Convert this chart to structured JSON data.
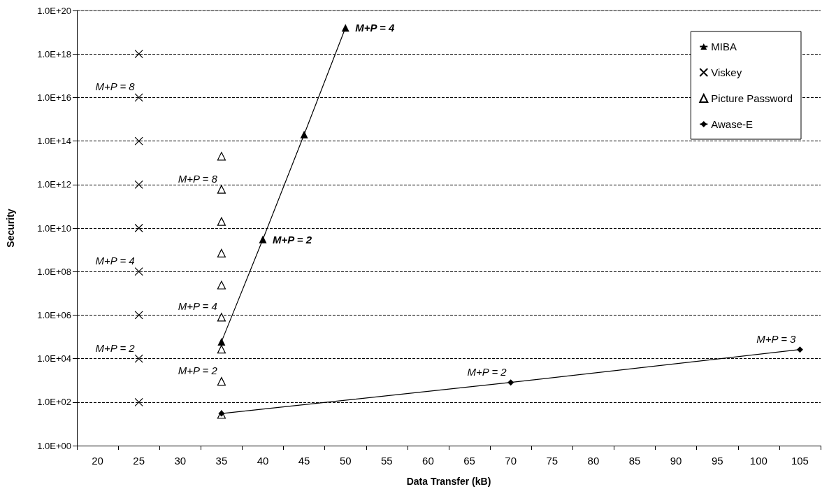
{
  "chart_data": {
    "type": "line",
    "xlabel": "Data Transfer (kB)",
    "ylabel": "Security",
    "categories": [
      "20",
      "25",
      "30",
      "35",
      "40",
      "45",
      "50",
      "55",
      "60",
      "65",
      "70",
      "75",
      "80",
      "85",
      "90",
      "95",
      "100",
      "105"
    ],
    "series": [
      {
        "name": "MIBA",
        "color": "#000000",
        "marker": "triangle",
        "x": [
          "35",
          "40",
          "45",
          "50"
        ],
        "values": [
          60000,
          3000000000,
          200000000000000,
          1.6e+19
        ]
      },
      {
        "name": "Viskey",
        "type": "scatter",
        "color": "#000000",
        "marker": "cross",
        "x": [
          "25",
          "25",
          "25",
          "25",
          "25",
          "25",
          "25",
          "25",
          "25"
        ],
        "values": [
          100,
          10000,
          1000000,
          100000000,
          10000000000,
          1000000000000,
          100000000000000,
          1e+16,
          1e+18
        ]
      },
      {
        "name": "Picture Password",
        "type": "scatter",
        "color": "#000000",
        "marker": "triangle",
        "x": [
          "35",
          "35",
          "35",
          "35",
          "35",
          "35",
          "35",
          "35",
          "35"
        ],
        "values": [
          27,
          900,
          27000,
          800000,
          24000000,
          700000000,
          20000000000,
          600000000000,
          20000000000000
        ]
      },
      {
        "name": "Awase-E",
        "color": "#000000",
        "marker": "diamond",
        "x": [
          "35",
          "70",
          "105"
        ],
        "values": [
          30,
          800,
          26000
        ]
      }
    ],
    "log": "y",
    "ylim": [
      1,
      1e+20
    ],
    "yticks": [
      {
        "value": 1,
        "label": "1.0E+00"
      },
      {
        "value": 100,
        "label": "1.0E+02"
      },
      {
        "value": 10000,
        "label": "1.0E+04"
      },
      {
        "value": 1000000,
        "label": "1.0E+06"
      },
      {
        "value": 100000000,
        "label": "1.0E+08"
      },
      {
        "value": 10000000000,
        "label": "1.0E+10"
      },
      {
        "value": 1000000000000,
        "label": "1.0E+12"
      },
      {
        "value": 100000000000000,
        "label": "1.0E+14"
      },
      {
        "value": 1e+16,
        "label": "1.0E+16"
      },
      {
        "value": 1e+18,
        "label": "1.0E+18"
      },
      {
        "value": 1e+20,
        "label": "1.0E+20"
      }
    ],
    "grid": "y",
    "line_style": "solid",
    "legend": "top right",
    "annotations": [
      {
        "text": "M+P = 8",
        "x": "25",
        "y": 1e+16
      },
      {
        "text": "M+P = 4",
        "x": "25",
        "y": 100000000
      },
      {
        "text": "M+P = 2",
        "x": "25",
        "y": 10000
      },
      {
        "text": "M+P = 8",
        "x": "35",
        "y": 600000000000
      },
      {
        "text": "M+P = 4",
        "x": "35",
        "y": 800000
      },
      {
        "text": "M+P = 2",
        "x": "35",
        "y": 900
      },
      {
        "text": "M+P = 2",
        "x": "40",
        "y": 3000000000
      },
      {
        "text": "M+P = 4",
        "x": "50",
        "y": 1.6e+19
      },
      {
        "text": "M+P = 2",
        "x": "70",
        "y": 800
      },
      {
        "text": "M+P = 3",
        "x": "105",
        "y": 26000
      }
    ]
  }
}
